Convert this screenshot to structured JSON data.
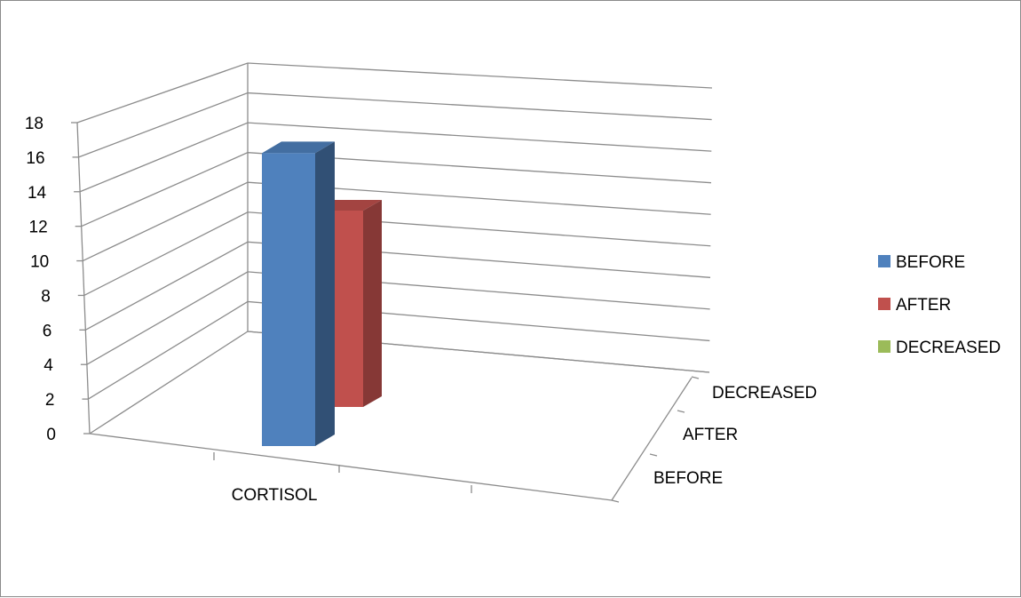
{
  "chart_data": {
    "type": "bar",
    "title": "",
    "categories": [
      "CORTISOL"
    ],
    "series": [
      {
        "name": "BEFORE",
        "values": [
          16
        ],
        "color": "#4F81BD"
      },
      {
        "name": "AFTER",
        "values": [
          13
        ],
        "color": "#C0504D"
      },
      {
        "name": "DECREASED",
        "values": [
          0
        ],
        "color": "#9BBB59"
      }
    ],
    "ylim": [
      0,
      18
    ],
    "yticks": [
      0,
      2,
      4,
      6,
      8,
      10,
      12,
      14,
      16,
      18
    ],
    "depth_labels": [
      "BEFORE",
      "AFTER",
      "DECREASED"
    ],
    "grid": true,
    "legend_position": "right",
    "projection": "3d-column"
  }
}
